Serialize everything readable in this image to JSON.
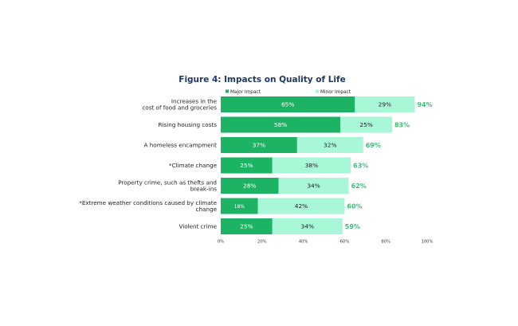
{
  "chart_data": {
    "type": "bar",
    "orientation": "horizontal",
    "stacked": true,
    "title": "Figure 4: Impacts on Quality of Life",
    "categories": [
      [
        "Increases in the",
        "cost of food and groceries"
      ],
      [
        "Rising housing costs"
      ],
      [
        "A homeless encampment"
      ],
      [
        "*Climate change"
      ],
      [
        "Property crime, such as thefts and",
        "break-ins"
      ],
      [
        "*Extreme weather conditions caused by climate",
        "change"
      ],
      [
        "Violent crime"
      ]
    ],
    "series": [
      {
        "name": "Major Impact",
        "values": [
          65,
          58,
          37,
          25,
          28,
          18,
          25
        ],
        "labels": [
          "65%",
          "58%",
          "37%",
          "25%",
          "28%",
          "18%",
          "25%"
        ]
      },
      {
        "name": "Minor Impact",
        "values": [
          29,
          25,
          32,
          38,
          34,
          42,
          34
        ],
        "labels": [
          "29%",
          "25%",
          "32%",
          "38%",
          "34%",
          "42%",
          "34%"
        ]
      }
    ],
    "totals": [
      "94%",
      "83%",
      "69%",
      "63%",
      "62%",
      "60%",
      "59%"
    ],
    "xticks": [
      "0%",
      "20%",
      "40%",
      "60%",
      "80%",
      "100%"
    ],
    "xlim": [
      0,
      100
    ],
    "legend_position": "top",
    "colors": {
      "major": "#1db364",
      "minor": "#a8f7d6",
      "total": "#3dbd78"
    }
  }
}
